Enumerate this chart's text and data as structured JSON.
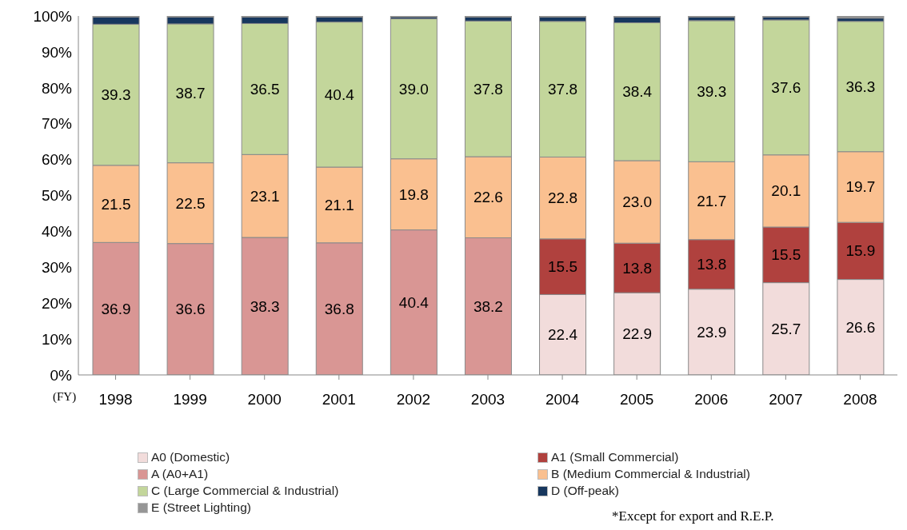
{
  "chart_data": {
    "type": "bar",
    "stacked": true,
    "xlabel": "(FY)",
    "categories": [
      "1998",
      "1999",
      "2000",
      "2001",
      "2002",
      "2003",
      "2004",
      "2005",
      "2006",
      "2007",
      "2008"
    ],
    "series": [
      {
        "name": "A0 (Domestic)",
        "color": "#f2dcdb",
        "values": [
          null,
          null,
          null,
          null,
          null,
          null,
          22.4,
          22.9,
          23.9,
          25.7,
          26.6
        ],
        "value_labels": [
          null,
          null,
          null,
          null,
          null,
          null,
          "22.4",
          "22.9",
          "23.9",
          "25.7",
          "26.6"
        ]
      },
      {
        "name": "A1 (Small Commercial)",
        "color": "#b0413e",
        "values": [
          null,
          null,
          null,
          null,
          null,
          null,
          15.5,
          13.8,
          13.8,
          15.5,
          15.9
        ],
        "value_labels": [
          null,
          null,
          null,
          null,
          null,
          null,
          "15.5",
          "13.8",
          "13.8",
          "15.5",
          "15.9"
        ]
      },
      {
        "name": "A (A0+A1)",
        "color": "#d99694",
        "values": [
          36.9,
          36.6,
          38.3,
          36.8,
          40.4,
          38.2,
          null,
          null,
          null,
          null,
          null
        ],
        "value_labels": [
          "36.9",
          "36.6",
          "38.3",
          "36.8",
          "40.4",
          "38.2",
          null,
          null,
          null,
          null,
          null
        ]
      },
      {
        "name": "B (Medium Commercial & Industrial)",
        "color": "#fac090",
        "values": [
          21.5,
          22.5,
          23.1,
          21.1,
          19.8,
          22.6,
          22.8,
          23.0,
          21.7,
          20.1,
          19.7
        ],
        "value_labels": [
          "21.5",
          "22.5",
          "23.1",
          "21.1",
          "19.8",
          "22.6",
          "22.8",
          "23.0",
          "21.7",
          "20.1",
          "19.7"
        ]
      },
      {
        "name": "C (Large Commercial & Industrial)",
        "color": "#c3d69b",
        "values": [
          39.3,
          38.7,
          36.5,
          40.4,
          39.0,
          37.8,
          37.8,
          38.4,
          39.3,
          37.6,
          36.3
        ],
        "value_labels": [
          "39.3",
          "38.7",
          "36.5",
          "40.4",
          "39.0",
          "37.8",
          "37.8",
          "38.4",
          "39.3",
          "37.6",
          "36.3"
        ]
      },
      {
        "name": "D (Off-peak)",
        "color": "#17375e",
        "values": [
          2.0,
          1.9,
          1.8,
          1.4,
          0.5,
          1.1,
          1.2,
          1.6,
          1.0,
          0.8,
          0.9
        ]
      },
      {
        "name": "E (Street Lighting)",
        "color": "#969696",
        "values": [
          0.3,
          0.3,
          0.3,
          0.3,
          0.3,
          0.3,
          0.3,
          0.3,
          0.3,
          0.3,
          0.6
        ]
      }
    ],
    "ylim": [
      0,
      100
    ],
    "yticks": [
      {
        "value": 0,
        "label": "0%"
      },
      {
        "value": 10,
        "label": "10%"
      },
      {
        "value": 20,
        "label": "20%"
      },
      {
        "value": 30,
        "label": "30%"
      },
      {
        "value": 40,
        "label": "40%"
      },
      {
        "value": 50,
        "label": "50%"
      },
      {
        "value": 60,
        "label": "60%"
      },
      {
        "value": 70,
        "label": "70%"
      },
      {
        "value": 80,
        "label": "80%"
      },
      {
        "value": 90,
        "label": "90%"
      },
      {
        "value": 100,
        "label": "100%"
      }
    ],
    "grid": false,
    "legend": "bottom",
    "annotations": [
      "*Except for export and R.E.P."
    ]
  }
}
